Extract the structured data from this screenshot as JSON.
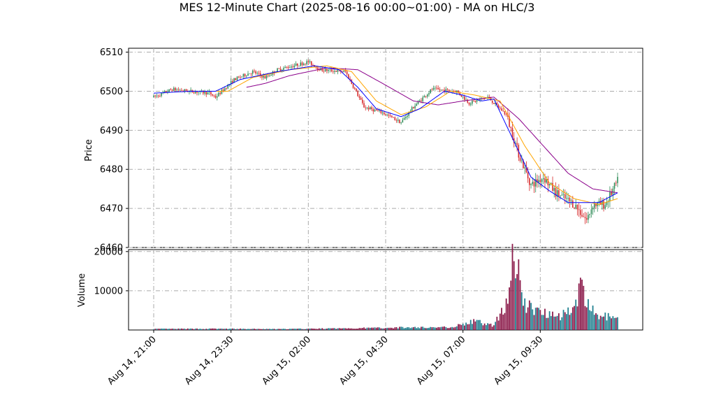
{
  "chart_data": {
    "type": "candlestick",
    "title": "MES 12-Minute Chart (2025-08-16 00:00~01:00) - MA on HLC/3",
    "price_panel": {
      "ylabel": "Price",
      "ylim": [
        6460,
        6511
      ],
      "yticks": [
        "6460",
        "6470",
        "6480",
        "6490",
        "6500",
        "6510"
      ],
      "grid": true,
      "grid_style": "dash-dot"
    },
    "volume_panel": {
      "ylabel": "Volume",
      "ylim": [
        0,
        20500
      ],
      "yticks": [
        "10000",
        "20000"
      ],
      "grid": true
    },
    "x_ticks": [
      "Aug 14, 21:00",
      "Aug 14, 23:30",
      "Aug 15, 02:00",
      "Aug 15, 04:30",
      "Aug 15, 07:00",
      "Aug 15, 09:30"
    ],
    "x_tick_positions_bar_index": [
      0,
      12.5,
      25,
      37.5,
      50,
      62.5
    ],
    "bars_count": 76,
    "colors": {
      "up": "#2e8b57",
      "down": "#d62728",
      "ma_fast": "#0000ff",
      "ma_mid": "#ffa500",
      "ma_slow": "#8b008b",
      "volume_up": "#1f7f8f",
      "volume_down": "#8b1a4a",
      "grid": "#aaaaaa"
    },
    "ohlc_keypoints": [
      {
        "i": 0,
        "price": 6498.5
      },
      {
        "i": 3,
        "price": 6500.5
      },
      {
        "i": 9,
        "price": 6499.5
      },
      {
        "i": 10,
        "price": 6498.5
      },
      {
        "i": 13,
        "price": 6503
      },
      {
        "i": 16,
        "price": 6505
      },
      {
        "i": 18,
        "price": 6503.5
      },
      {
        "i": 20,
        "price": 6505.5
      },
      {
        "i": 25,
        "price": 6507.5
      },
      {
        "i": 27,
        "price": 6505.5
      },
      {
        "i": 31,
        "price": 6505
      },
      {
        "i": 34,
        "price": 6496
      },
      {
        "i": 37,
        "price": 6494.5
      },
      {
        "i": 40,
        "price": 6492
      },
      {
        "i": 42,
        "price": 6496
      },
      {
        "i": 45,
        "price": 6500.5
      },
      {
        "i": 49,
        "price": 6500
      },
      {
        "i": 51,
        "price": 6497
      },
      {
        "i": 54,
        "price": 6498.5
      },
      {
        "i": 57,
        "price": 6494
      },
      {
        "i": 59,
        "price": 6484
      },
      {
        "i": 61,
        "price": 6476
      },
      {
        "i": 63,
        "price": 6478
      },
      {
        "i": 65,
        "price": 6474
      },
      {
        "i": 68,
        "price": 6471
      },
      {
        "i": 70,
        "price": 6467
      },
      {
        "i": 71,
        "price": 6471
      },
      {
        "i": 73,
        "price": 6471
      },
      {
        "i": 75,
        "price": 6477
      }
    ],
    "volume_keypoints": [
      {
        "i": 0,
        "v": 300
      },
      {
        "i": 10,
        "v": 350
      },
      {
        "i": 20,
        "v": 250
      },
      {
        "i": 30,
        "v": 450
      },
      {
        "i": 40,
        "v": 700
      },
      {
        "i": 48,
        "v": 800
      },
      {
        "i": 52,
        "v": 2500
      },
      {
        "i": 55,
        "v": 1200
      },
      {
        "i": 57,
        "v": 8000
      },
      {
        "i": 58,
        "v": 19000
      },
      {
        "i": 59,
        "v": 16000
      },
      {
        "i": 60,
        "v": 7000
      },
      {
        "i": 62,
        "v": 5500
      },
      {
        "i": 64,
        "v": 5000
      },
      {
        "i": 66,
        "v": 4000
      },
      {
        "i": 68,
        "v": 7000
      },
      {
        "i": 69,
        "v": 12000
      },
      {
        "i": 70,
        "v": 7000
      },
      {
        "i": 72,
        "v": 4000
      },
      {
        "i": 74,
        "v": 3500
      },
      {
        "i": 75,
        "v": 3000
      }
    ],
    "ma_fast_keypoints": [
      {
        "i": 0,
        "p": 6499.5
      },
      {
        "i": 6,
        "p": 6500
      },
      {
        "i": 10,
        "p": 6500
      },
      {
        "i": 14,
        "p": 6503
      },
      {
        "i": 20,
        "p": 6505
      },
      {
        "i": 26,
        "p": 6506.5
      },
      {
        "i": 30,
        "p": 6505.5
      },
      {
        "i": 33,
        "p": 6501
      },
      {
        "i": 36,
        "p": 6495.5
      },
      {
        "i": 40,
        "p": 6493.5
      },
      {
        "i": 43,
        "p": 6495.5
      },
      {
        "i": 47,
        "p": 6500
      },
      {
        "i": 50,
        "p": 6499
      },
      {
        "i": 53,
        "p": 6497.5
      },
      {
        "i": 55,
        "p": 6498
      },
      {
        "i": 58,
        "p": 6488
      },
      {
        "i": 61,
        "p": 6478
      },
      {
        "i": 64,
        "p": 6474.5
      },
      {
        "i": 67,
        "p": 6471.5
      },
      {
        "i": 70,
        "p": 6471.5
      },
      {
        "i": 72,
        "p": 6471.5
      },
      {
        "i": 75,
        "p": 6474
      }
    ],
    "ma_mid_keypoints": [
      {
        "i": 8,
        "p": 6500
      },
      {
        "i": 12,
        "p": 6500
      },
      {
        "i": 16,
        "p": 6503.5
      },
      {
        "i": 22,
        "p": 6505.5
      },
      {
        "i": 28,
        "p": 6506.5
      },
      {
        "i": 32,
        "p": 6505
      },
      {
        "i": 36,
        "p": 6497.5
      },
      {
        "i": 40,
        "p": 6494
      },
      {
        "i": 44,
        "p": 6496
      },
      {
        "i": 48,
        "p": 6500
      },
      {
        "i": 52,
        "p": 6499
      },
      {
        "i": 56,
        "p": 6497.5
      },
      {
        "i": 60,
        "p": 6486
      },
      {
        "i": 64,
        "p": 6476.5
      },
      {
        "i": 68,
        "p": 6472.5
      },
      {
        "i": 72,
        "p": 6471
      },
      {
        "i": 75,
        "p": 6472.5
      }
    ],
    "ma_slow_keypoints": [
      {
        "i": 15,
        "p": 6501
      },
      {
        "i": 18,
        "p": 6502
      },
      {
        "i": 22,
        "p": 6504
      },
      {
        "i": 28,
        "p": 6506
      },
      {
        "i": 33,
        "p": 6505.5
      },
      {
        "i": 37,
        "p": 6502
      },
      {
        "i": 42,
        "p": 6497.5
      },
      {
        "i": 46,
        "p": 6496.5
      },
      {
        "i": 50,
        "p": 6497.5
      },
      {
        "i": 55,
        "p": 6498.5
      },
      {
        "i": 59,
        "p": 6493
      },
      {
        "i": 63,
        "p": 6486
      },
      {
        "i": 67,
        "p": 6479
      },
      {
        "i": 71,
        "p": 6475
      },
      {
        "i": 75,
        "p": 6474
      }
    ]
  }
}
